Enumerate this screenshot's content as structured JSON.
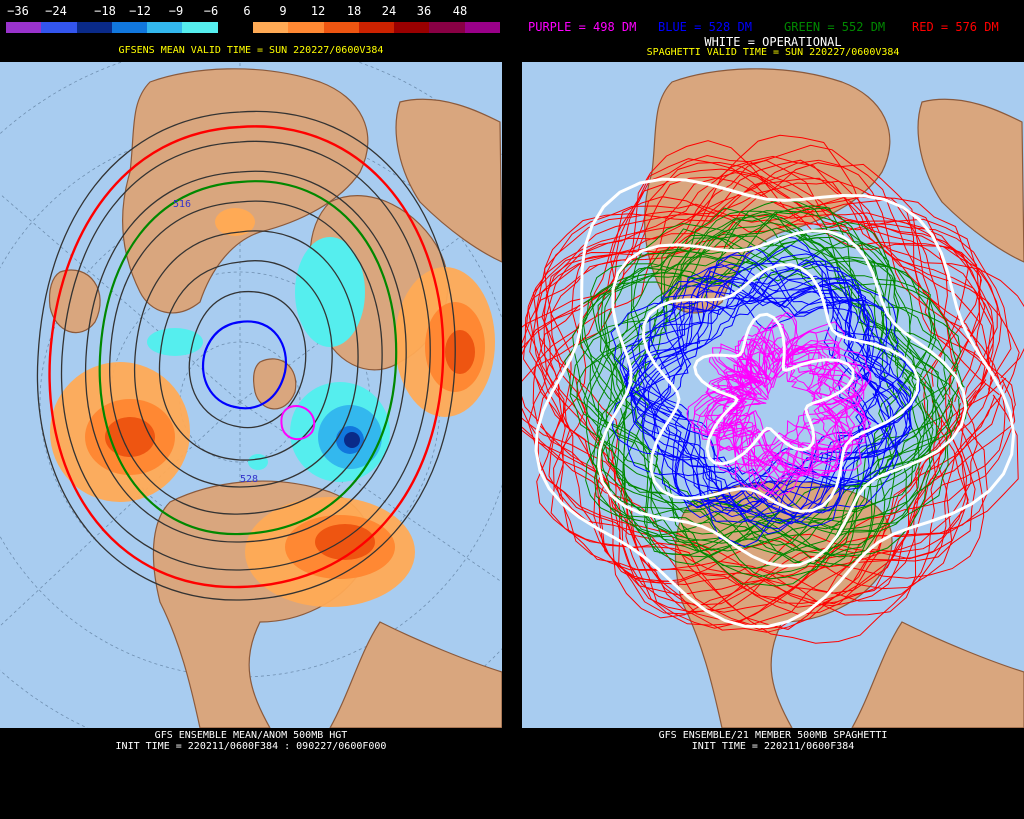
{
  "left_panel": {
    "scale_labels": [
      "−36",
      "−24",
      "−18",
      "−12",
      "−9",
      "−6",
      "6",
      "9",
      "12",
      "18",
      "24",
      "36",
      "48"
    ],
    "scale_colors": [
      "#9933cc",
      "#3355ee",
      "#0a2a88",
      "#1177dd",
      "#33b8ee",
      "#55eeee",
      "#000000",
      "#ffaa55",
      "#ff8833",
      "#ee5511",
      "#cc2200",
      "#990000",
      "#880044",
      "#990088"
    ],
    "title": "GFSENS MEAN VALID TIME = SUN 220227/0600V384",
    "contour_label_1": "528",
    "contour_label_2": "516",
    "footer_line_1": "GFS ENSEMBLE MEAN/ANOM 500MB HGT",
    "footer_line_2": "INIT TIME = 220211/0600F384 : 090227/0600F000"
  },
  "right_panel": {
    "legend_purple": "PURPLE = 498 DM",
    "legend_blue": "BLUE = 528 DM",
    "legend_green": "GREEN = 552 DM",
    "legend_red": "RED = 576 DM",
    "legend_white": "WHITE = OPERATIONAL",
    "title": "SPAGHETTI VALID TIME = SUN 220227/0600V384",
    "footer_line_1": "GFS ENSEMBLE/21 MEMBER 500MB SPAGHETTI",
    "footer_line_2": "INIT TIME = 220211/0600F384"
  },
  "colors": {
    "ocean": "#a8ccf0",
    "land": "#d9a67e",
    "coast": "#8b5a3c",
    "purple": "#ff00ff",
    "blue": "#0000ff",
    "green": "#008800",
    "red": "#ff0000",
    "white": "#ffffff"
  }
}
